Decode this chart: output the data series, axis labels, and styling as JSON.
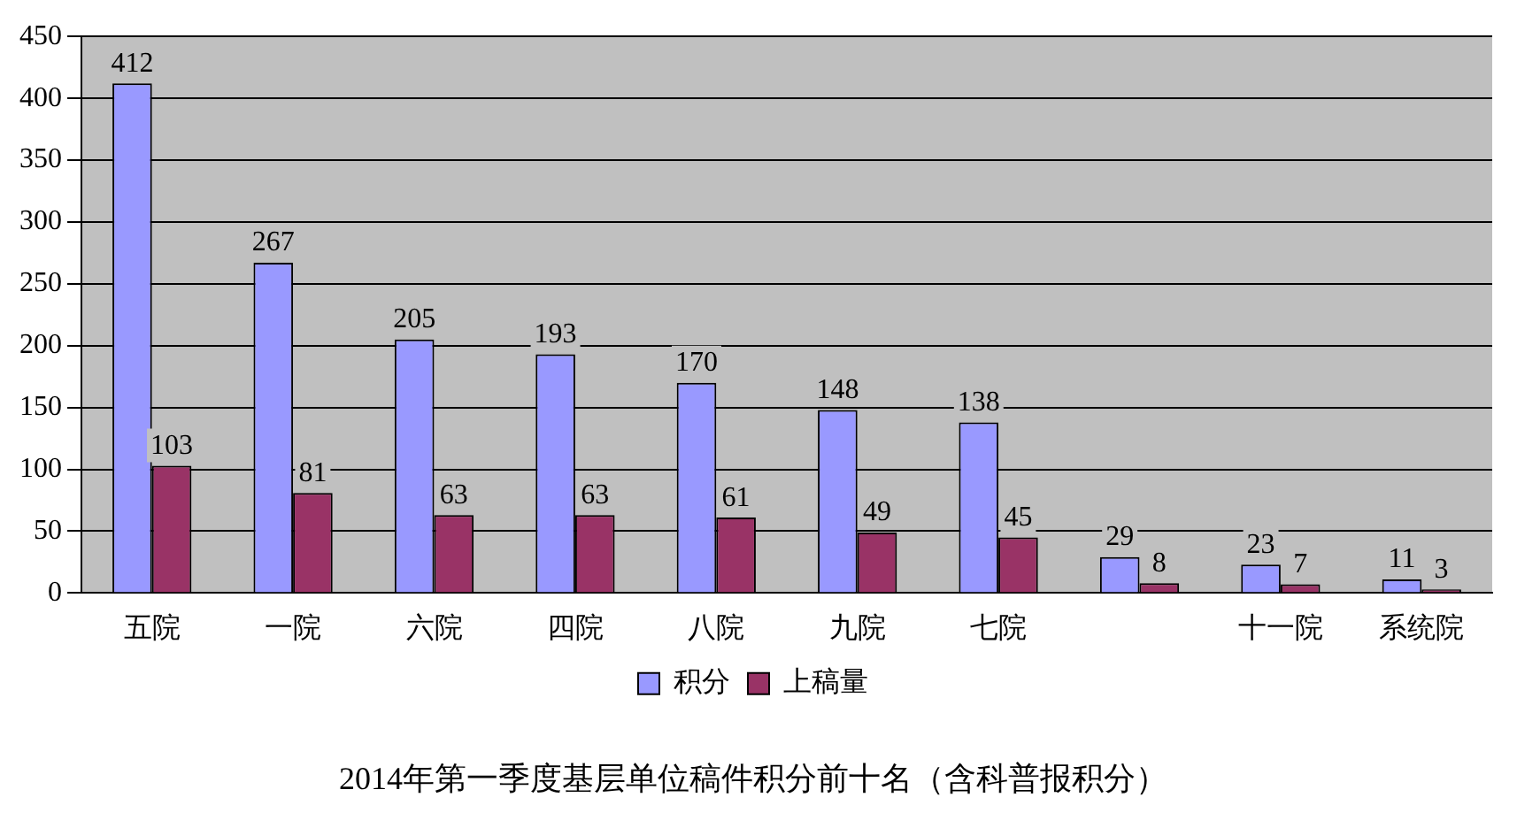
{
  "chart_data": {
    "type": "bar",
    "title": "2014年第一季度基层单位稿件积分前十名（含科普报积分）",
    "categories": [
      "五院",
      "一院",
      "六院",
      "四院",
      "八院",
      "九院",
      "七院",
      null,
      "十一院",
      "系统院"
    ],
    "series": [
      {
        "name": "积分",
        "color": "#9999ff",
        "values": [
          412,
          267,
          205,
          193,
          170,
          148,
          138,
          29,
          23,
          11
        ]
      },
      {
        "name": "上稿量",
        "color": "#993366",
        "values": [
          103,
          81,
          63,
          63,
          61,
          49,
          45,
          8,
          7,
          3
        ]
      }
    ],
    "ylim": [
      0,
      450
    ],
    "yticks": [
      0,
      50,
      100,
      150,
      200,
      250,
      300,
      350,
      400,
      450
    ],
    "grid": "y",
    "legend": "bottom",
    "data_labels": true
  }
}
